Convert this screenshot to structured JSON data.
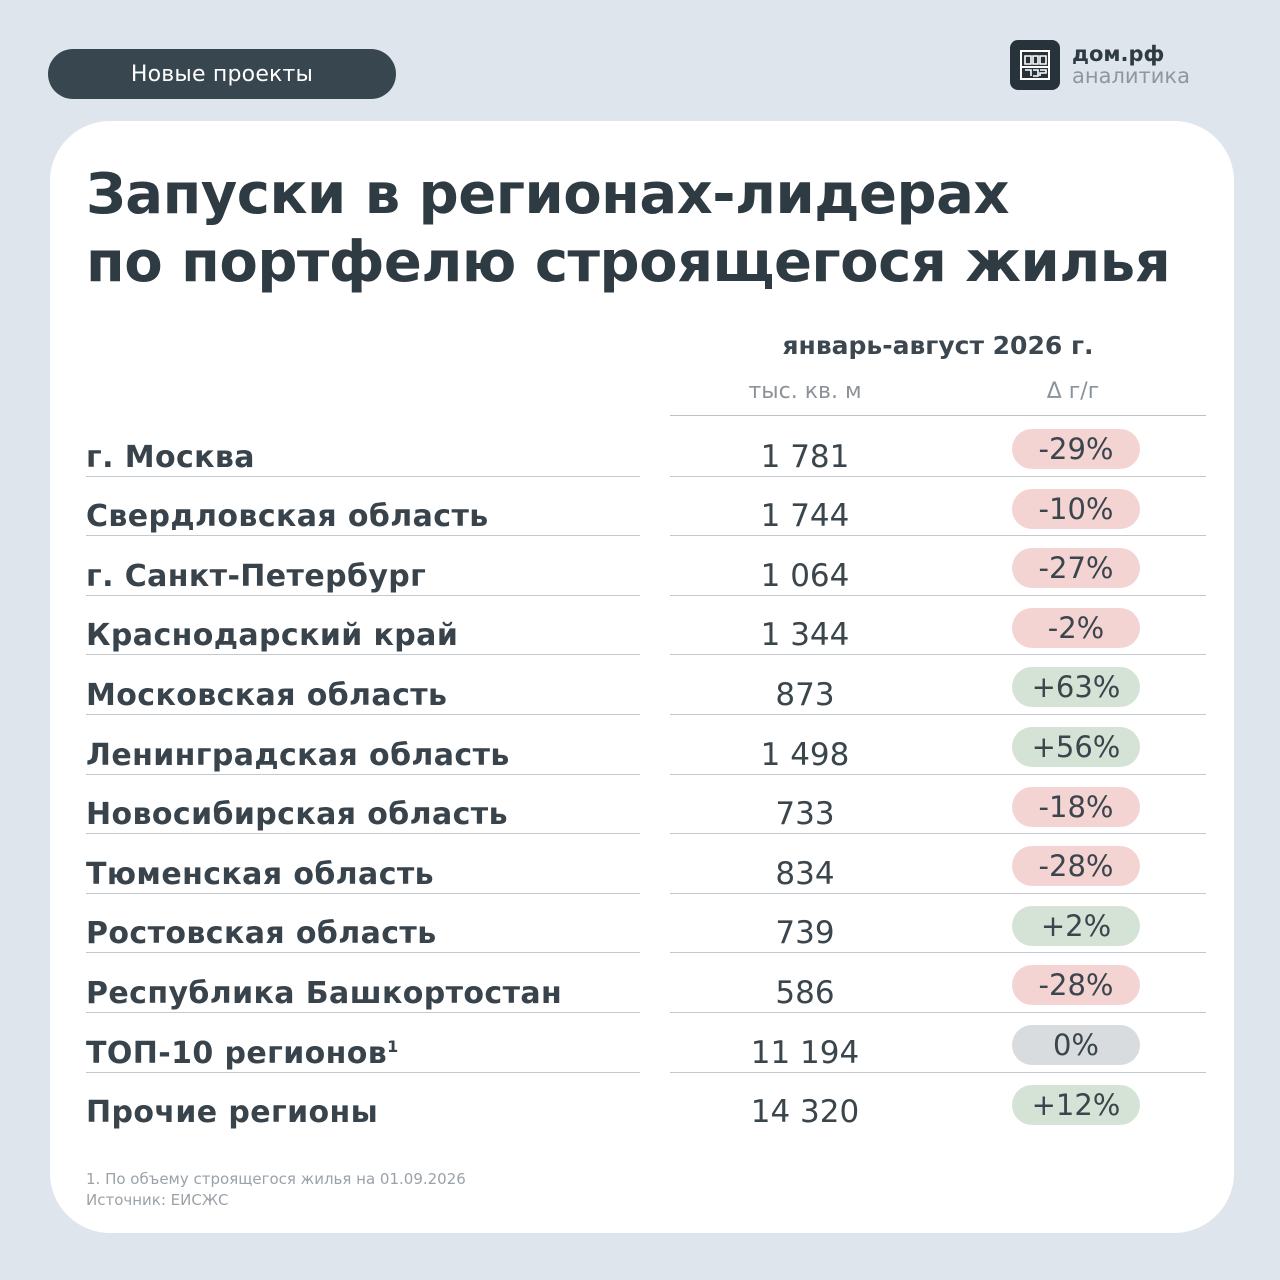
{
  "header": {
    "section_label": "Новые проекты"
  },
  "logo": {
    "name": "дом.рф",
    "subtitle": "аналитика"
  },
  "card": {
    "title_line1": "Запуски в регионах-лидерах",
    "title_line2": "по портфелю строящегося жилья",
    "period": "январь-август 2026 г.",
    "col_units": "тыс. кв. м",
    "col_delta": "Δ г/г"
  },
  "rows": [
    {
      "name": "г. Москва",
      "value": "1 781",
      "delta": "-29%",
      "sign": "neg"
    },
    {
      "name": "Свердловская область",
      "value": "1 744",
      "delta": "-10%",
      "sign": "neg"
    },
    {
      "name": "г. Санкт-Петербург",
      "value": "1 064",
      "delta": "-27%",
      "sign": "neg"
    },
    {
      "name": "Краснодарский край",
      "value": "1 344",
      "delta": "-2%",
      "sign": "neg"
    },
    {
      "name": "Московская область",
      "value": "873",
      "delta": "+63%",
      "sign": "pos"
    },
    {
      "name": "Ленинградская область",
      "value": "1 498",
      "delta": "+56%",
      "sign": "pos"
    },
    {
      "name": "Новосибирская область",
      "value": "733",
      "delta": "-18%",
      "sign": "neg"
    },
    {
      "name": "Тюменская область",
      "value": "834",
      "delta": "-28%",
      "sign": "neg"
    },
    {
      "name": "Ростовская область",
      "value": "739",
      "delta": "+2%",
      "sign": "pos"
    },
    {
      "name": "Республика Башкортостан",
      "value": "586",
      "delta": "-28%",
      "sign": "neg"
    },
    {
      "name": "ТОП-10 регионов",
      "sup": "1",
      "value": "11 194",
      "delta": "0%",
      "sign": "zero"
    },
    {
      "name": "Прочие регионы",
      "value": "14 320",
      "delta": "+12%",
      "sign": "pos"
    }
  ],
  "footnote": {
    "note": "1. По объему строящегося жилья на 01.09.2026",
    "source": "Источник: ЕИСЖС"
  }
}
